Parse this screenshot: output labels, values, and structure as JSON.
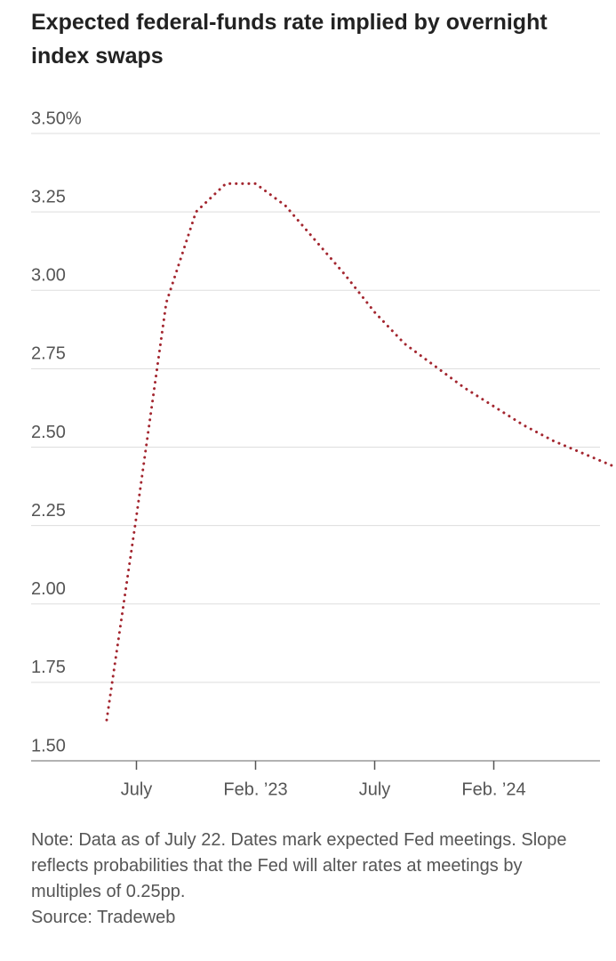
{
  "chart_data": {
    "type": "line",
    "title": "Expected federal-funds rate implied by overnight index swaps",
    "note": "Note: Data as of July 22. Dates mark expected Fed meetings. Slope reflects probabilities that the Fed will alter rates at meetings by multiples of 0.25pp.",
    "source": "Source: Tradeweb",
    "categories": [
      null,
      "July",
      null,
      null,
      null,
      "Feb. ’23",
      null,
      null,
      null,
      "July",
      null,
      null,
      null,
      "Feb. ’24",
      null,
      null,
      null,
      null
    ],
    "values": [
      1.63,
      2.28,
      2.96,
      3.25,
      3.34,
      3.34,
      3.27,
      3.16,
      3.05,
      2.93,
      2.83,
      2.76,
      2.69,
      2.63,
      2.57,
      2.52,
      2.48,
      2.44
    ],
    "color": "#a3262f",
    "dotted": true,
    "grid": true,
    "ylim": [
      1.5,
      3.5
    ],
    "yticks": [
      {
        "value": 1.5,
        "label": "1.50"
      },
      1.75,
      {
        "value": 2,
        "label": "2.00"
      },
      2.25,
      {
        "value": 2.5,
        "label": "2.50"
      },
      2.75,
      {
        "value": 3,
        "label": "3.00"
      },
      3.25,
      {
        "value": 3.5,
        "label": "3.50%"
      }
    ]
  }
}
